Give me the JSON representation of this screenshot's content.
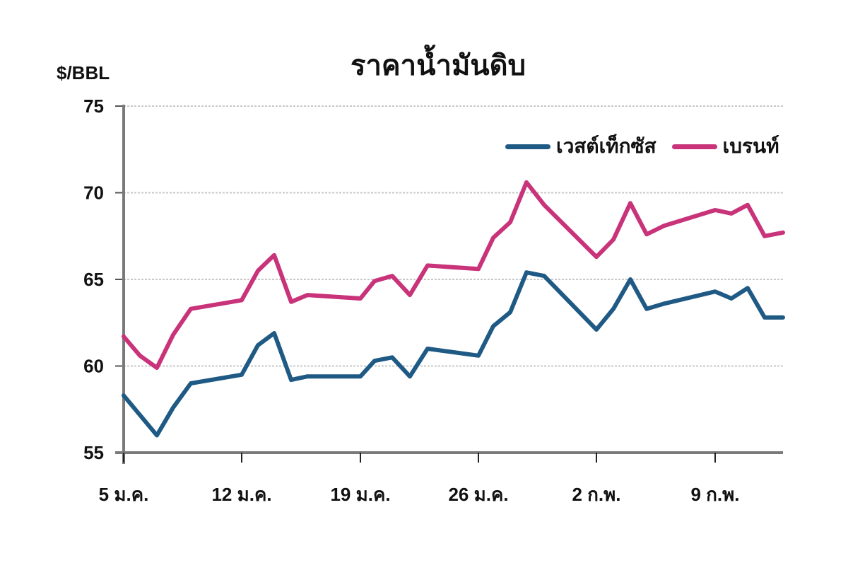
{
  "chart_data": {
    "type": "line",
    "title": "ราคาน้ำมันดิบ",
    "ylabel": "$/BBL",
    "xlabel": "",
    "ylim": [
      55,
      75
    ],
    "yticks": [
      55,
      60,
      65,
      70,
      75
    ],
    "grid": "horizontal dotted",
    "legend_position": "top-right inside",
    "x_tick_labels": [
      "5 ม.ค.",
      "12 ม.ค.",
      "19 ม.ค.",
      "26 ม.ค.",
      "2 ก.พ.",
      "9 ก.พ."
    ],
    "series": [
      {
        "name": "เวสต์เท็กซัส",
        "color": "#1f5a85",
        "points": [
          [
            175,
            58.3
          ],
          [
            222,
            56.0
          ],
          [
            245,
            57.6
          ],
          [
            270,
            59.0
          ],
          [
            342,
            59.5
          ],
          [
            365,
            61.2
          ],
          [
            388,
            61.9
          ],
          [
            412,
            59.2
          ],
          [
            435,
            59.4
          ],
          [
            510,
            59.4
          ],
          [
            530,
            60.3
          ],
          [
            555,
            60.5
          ],
          [
            580,
            59.4
          ],
          [
            605,
            61.0
          ],
          [
            677,
            60.6
          ],
          [
            698,
            62.3
          ],
          [
            722,
            63.1
          ],
          [
            745,
            65.4
          ],
          [
            770,
            65.2
          ],
          [
            844,
            62.1
          ],
          [
            868,
            63.3
          ],
          [
            892,
            65.0
          ],
          [
            915,
            63.3
          ],
          [
            940,
            63.6
          ],
          [
            1012,
            64.3
          ],
          [
            1035,
            63.9
          ],
          [
            1058,
            64.5
          ],
          [
            1082,
            62.8
          ],
          [
            1108,
            62.8
          ]
        ]
      },
      {
        "name": "เบรนท์",
        "color": "#c8337a",
        "points": [
          [
            175,
            61.7
          ],
          [
            198,
            60.6
          ],
          [
            222,
            59.9
          ],
          [
            245,
            61.8
          ],
          [
            270,
            63.3
          ],
          [
            342,
            63.8
          ],
          [
            365,
            65.5
          ],
          [
            388,
            66.4
          ],
          [
            412,
            63.7
          ],
          [
            435,
            64.1
          ],
          [
            510,
            63.9
          ],
          [
            530,
            64.9
          ],
          [
            555,
            65.2
          ],
          [
            580,
            64.1
          ],
          [
            605,
            65.8
          ],
          [
            677,
            65.6
          ],
          [
            698,
            67.4
          ],
          [
            722,
            68.3
          ],
          [
            745,
            70.6
          ],
          [
            770,
            69.3
          ],
          [
            844,
            66.3
          ],
          [
            868,
            67.3
          ],
          [
            892,
            69.4
          ],
          [
            915,
            67.6
          ],
          [
            940,
            68.1
          ],
          [
            1012,
            69.0
          ],
          [
            1035,
            68.8
          ],
          [
            1058,
            69.3
          ],
          [
            1082,
            67.5
          ],
          [
            1108,
            67.7
          ]
        ]
      }
    ]
  },
  "legend": {
    "wti_label": "เวสต์เท็กซัส",
    "brent_label": "เบรนท์"
  }
}
